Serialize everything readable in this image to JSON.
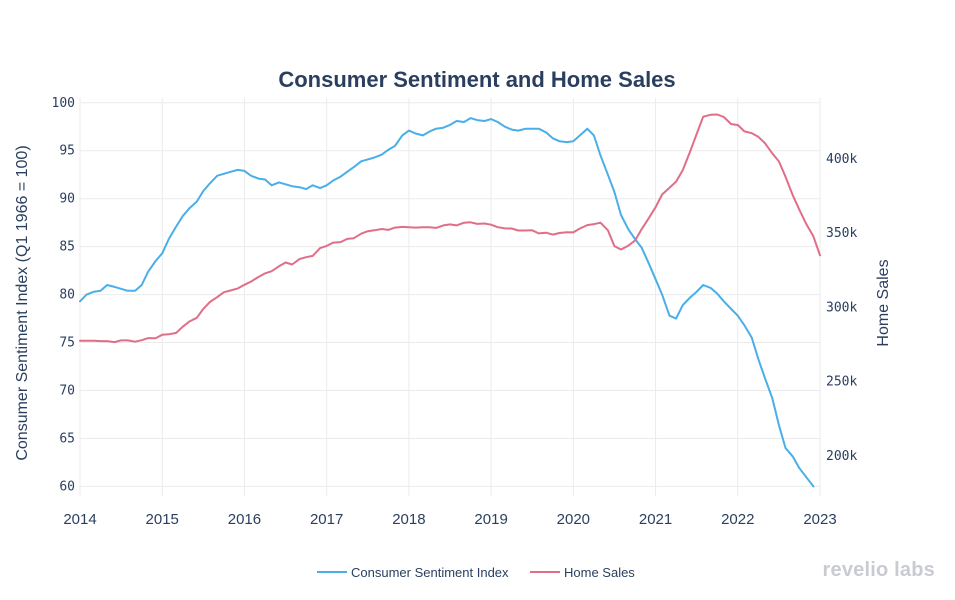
{
  "chart_data": {
    "type": "line",
    "title": "Consumer Sentiment and Home Sales",
    "xlabel": "",
    "ylabel_left": "Consumer Sentiment Index (Q1 1966 = 100)",
    "ylabel_right": "Home Sales",
    "xlim": [
      2014,
      2023
    ],
    "ylim_left": [
      59,
      100.5
    ],
    "ylim_right": [
      173000,
      441000
    ],
    "x_ticks": [
      "2014",
      "2015",
      "2016",
      "2017",
      "2018",
      "2019",
      "2020",
      "2021",
      "2022",
      "2023"
    ],
    "y_left_ticks": [
      "60",
      "65",
      "70",
      "75",
      "80",
      "85",
      "90",
      "95",
      "100"
    ],
    "y_right_ticks": [
      "200k",
      "250k",
      "300k",
      "350k",
      "400k"
    ],
    "grid": true,
    "legend_position": "bottom",
    "series": [
      {
        "name": "Consumer Sentiment Index",
        "axis": "left",
        "color": "#4aaee8",
        "points": [
          [
            2014.0,
            79.3
          ],
          [
            2014.08,
            80.0
          ],
          [
            2014.17,
            80.3
          ],
          [
            2014.25,
            80.4
          ],
          [
            2014.33,
            81.0
          ],
          [
            2014.42,
            80.8
          ],
          [
            2014.5,
            80.6
          ],
          [
            2014.58,
            80.4
          ],
          [
            2014.67,
            80.4
          ],
          [
            2014.75,
            81.0
          ],
          [
            2014.83,
            82.4
          ],
          [
            2014.92,
            83.5
          ],
          [
            2015.0,
            84.3
          ],
          [
            2015.08,
            85.8
          ],
          [
            2015.17,
            87.1
          ],
          [
            2015.25,
            88.2
          ],
          [
            2015.33,
            89.0
          ],
          [
            2015.42,
            89.7
          ],
          [
            2015.5,
            90.8
          ],
          [
            2015.58,
            91.6
          ],
          [
            2015.67,
            92.4
          ],
          [
            2015.75,
            92.6
          ],
          [
            2015.83,
            92.8
          ],
          [
            2015.92,
            93.0
          ],
          [
            2016.0,
            92.9
          ],
          [
            2016.08,
            92.4
          ],
          [
            2016.17,
            92.1
          ],
          [
            2016.25,
            92.0
          ],
          [
            2016.33,
            91.4
          ],
          [
            2016.42,
            91.7
          ],
          [
            2016.5,
            91.5
          ],
          [
            2016.58,
            91.3
          ],
          [
            2016.67,
            91.2
          ],
          [
            2016.75,
            91.0
          ],
          [
            2016.83,
            91.4
          ],
          [
            2016.92,
            91.1
          ],
          [
            2017.0,
            91.4
          ],
          [
            2017.08,
            91.9
          ],
          [
            2017.17,
            92.3
          ],
          [
            2017.25,
            92.8
          ],
          [
            2017.33,
            93.3
          ],
          [
            2017.42,
            93.9
          ],
          [
            2017.5,
            94.1
          ],
          [
            2017.58,
            94.3
          ],
          [
            2017.67,
            94.6
          ],
          [
            2017.75,
            95.1
          ],
          [
            2017.83,
            95.5
          ],
          [
            2017.92,
            96.6
          ],
          [
            2018.0,
            97.1
          ],
          [
            2018.08,
            96.8
          ],
          [
            2018.17,
            96.6
          ],
          [
            2018.25,
            97.0
          ],
          [
            2018.33,
            97.3
          ],
          [
            2018.42,
            97.4
          ],
          [
            2018.5,
            97.7
          ],
          [
            2018.58,
            98.1
          ],
          [
            2018.67,
            98.0
          ],
          [
            2018.75,
            98.4
          ],
          [
            2018.83,
            98.2
          ],
          [
            2018.92,
            98.1
          ],
          [
            2019.0,
            98.3
          ],
          [
            2019.08,
            98.0
          ],
          [
            2019.17,
            97.5
          ],
          [
            2019.25,
            97.2
          ],
          [
            2019.33,
            97.1
          ],
          [
            2019.42,
            97.3
          ],
          [
            2019.5,
            97.3
          ],
          [
            2019.58,
            97.3
          ],
          [
            2019.67,
            96.9
          ],
          [
            2019.75,
            96.3
          ],
          [
            2019.83,
            96.0
          ],
          [
            2019.92,
            95.9
          ],
          [
            2020.0,
            96.0
          ],
          [
            2020.08,
            96.6
          ],
          [
            2020.17,
            97.3
          ],
          [
            2020.25,
            96.6
          ],
          [
            2020.33,
            94.5
          ],
          [
            2020.42,
            92.5
          ],
          [
            2020.5,
            90.7
          ],
          [
            2020.58,
            88.3
          ],
          [
            2020.67,
            86.8
          ],
          [
            2020.75,
            85.8
          ],
          [
            2020.83,
            84.9
          ],
          [
            2020.92,
            83.2
          ],
          [
            2021.0,
            81.6
          ],
          [
            2021.08,
            80.0
          ],
          [
            2021.17,
            77.8
          ],
          [
            2021.25,
            77.5
          ],
          [
            2021.33,
            78.9
          ],
          [
            2021.42,
            79.7
          ],
          [
            2021.5,
            80.3
          ],
          [
            2021.58,
            81.0
          ],
          [
            2021.67,
            80.7
          ],
          [
            2021.75,
            80.1
          ],
          [
            2021.83,
            79.3
          ],
          [
            2021.92,
            78.5
          ],
          [
            2022.0,
            77.8
          ],
          [
            2022.08,
            76.8
          ],
          [
            2022.17,
            75.5
          ],
          [
            2022.25,
            73.3
          ],
          [
            2022.33,
            71.3
          ],
          [
            2022.42,
            69.2
          ],
          [
            2022.5,
            66.4
          ],
          [
            2022.58,
            64.0
          ],
          [
            2022.67,
            63.1
          ],
          [
            2022.75,
            61.9
          ],
          [
            2022.83,
            61.0
          ],
          [
            2022.92,
            60.0
          ]
        ]
      },
      {
        "name": "Home Sales",
        "axis": "right",
        "color": "#e06e88",
        "points": [
          [
            2014.0,
            277500
          ],
          [
            2014.08,
            277600
          ],
          [
            2014.17,
            277500
          ],
          [
            2014.25,
            277300
          ],
          [
            2014.33,
            277300
          ],
          [
            2014.42,
            276600
          ],
          [
            2014.5,
            277800
          ],
          [
            2014.58,
            277800
          ],
          [
            2014.67,
            276900
          ],
          [
            2014.75,
            277900
          ],
          [
            2014.83,
            279300
          ],
          [
            2014.92,
            279200
          ],
          [
            2015.0,
            281600
          ],
          [
            2015.08,
            281900
          ],
          [
            2015.17,
            282800
          ],
          [
            2015.25,
            287000
          ],
          [
            2015.33,
            290500
          ],
          [
            2015.42,
            293000
          ],
          [
            2015.5,
            299000
          ],
          [
            2015.58,
            303600
          ],
          [
            2015.67,
            306900
          ],
          [
            2015.75,
            310200
          ],
          [
            2015.83,
            311400
          ],
          [
            2015.92,
            312800
          ],
          [
            2016.0,
            315200
          ],
          [
            2016.08,
            317400
          ],
          [
            2016.17,
            320500
          ],
          [
            2016.25,
            322900
          ],
          [
            2016.33,
            324400
          ],
          [
            2016.42,
            327700
          ],
          [
            2016.5,
            330200
          ],
          [
            2016.58,
            328900
          ],
          [
            2016.67,
            332500
          ],
          [
            2016.75,
            333800
          ],
          [
            2016.83,
            334700
          ],
          [
            2016.92,
            339900
          ],
          [
            2017.0,
            341400
          ],
          [
            2017.08,
            343600
          ],
          [
            2017.17,
            344000
          ],
          [
            2017.25,
            346100
          ],
          [
            2017.33,
            346600
          ],
          [
            2017.42,
            349600
          ],
          [
            2017.5,
            351300
          ],
          [
            2017.58,
            351900
          ],
          [
            2017.67,
            352800
          ],
          [
            2017.75,
            352200
          ],
          [
            2017.83,
            353700
          ],
          [
            2017.92,
            354200
          ],
          [
            2018.0,
            354000
          ],
          [
            2018.08,
            353700
          ],
          [
            2018.17,
            353900
          ],
          [
            2018.25,
            353900
          ],
          [
            2018.33,
            353500
          ],
          [
            2018.42,
            355200
          ],
          [
            2018.5,
            355900
          ],
          [
            2018.58,
            355200
          ],
          [
            2018.67,
            357000
          ],
          [
            2018.75,
            357300
          ],
          [
            2018.83,
            356200
          ],
          [
            2018.92,
            356500
          ],
          [
            2019.0,
            355700
          ],
          [
            2019.08,
            354000
          ],
          [
            2019.17,
            353200
          ],
          [
            2019.25,
            353100
          ],
          [
            2019.33,
            351800
          ],
          [
            2019.42,
            351800
          ],
          [
            2019.5,
            351900
          ],
          [
            2019.58,
            349800
          ],
          [
            2019.67,
            350300
          ],
          [
            2019.75,
            349000
          ],
          [
            2019.83,
            350100
          ],
          [
            2019.92,
            350600
          ],
          [
            2020.0,
            350500
          ],
          [
            2020.08,
            353100
          ],
          [
            2020.17,
            355400
          ],
          [
            2020.25,
            356100
          ],
          [
            2020.33,
            357000
          ],
          [
            2020.42,
            351900
          ],
          [
            2020.5,
            341300
          ],
          [
            2020.58,
            339000
          ],
          [
            2020.67,
            341600
          ],
          [
            2020.75,
            345000
          ],
          [
            2020.83,
            352600
          ],
          [
            2020.92,
            360300
          ],
          [
            2021.0,
            367500
          ],
          [
            2021.08,
            376000
          ],
          [
            2021.17,
            380500
          ],
          [
            2021.25,
            384700
          ],
          [
            2021.33,
            392300
          ],
          [
            2021.42,
            404900
          ],
          [
            2021.5,
            416800
          ],
          [
            2021.58,
            428400
          ],
          [
            2021.67,
            429700
          ],
          [
            2021.75,
            429900
          ],
          [
            2021.83,
            428200
          ],
          [
            2021.92,
            423400
          ],
          [
            2022.0,
            422800
          ],
          [
            2022.08,
            418500
          ],
          [
            2022.17,
            417300
          ],
          [
            2022.25,
            414900
          ],
          [
            2022.33,
            410600
          ],
          [
            2022.42,
            403700
          ],
          [
            2022.5,
            398300
          ],
          [
            2022.58,
            388000
          ],
          [
            2022.67,
            375300
          ],
          [
            2022.75,
            365700
          ],
          [
            2022.83,
            356500
          ],
          [
            2022.92,
            347800
          ],
          [
            2023.0,
            335100
          ]
        ]
      }
    ]
  },
  "legend": {
    "items": [
      "Consumer Sentiment Index",
      "Home Sales"
    ]
  },
  "brand": {
    "text": "revelio labs"
  }
}
